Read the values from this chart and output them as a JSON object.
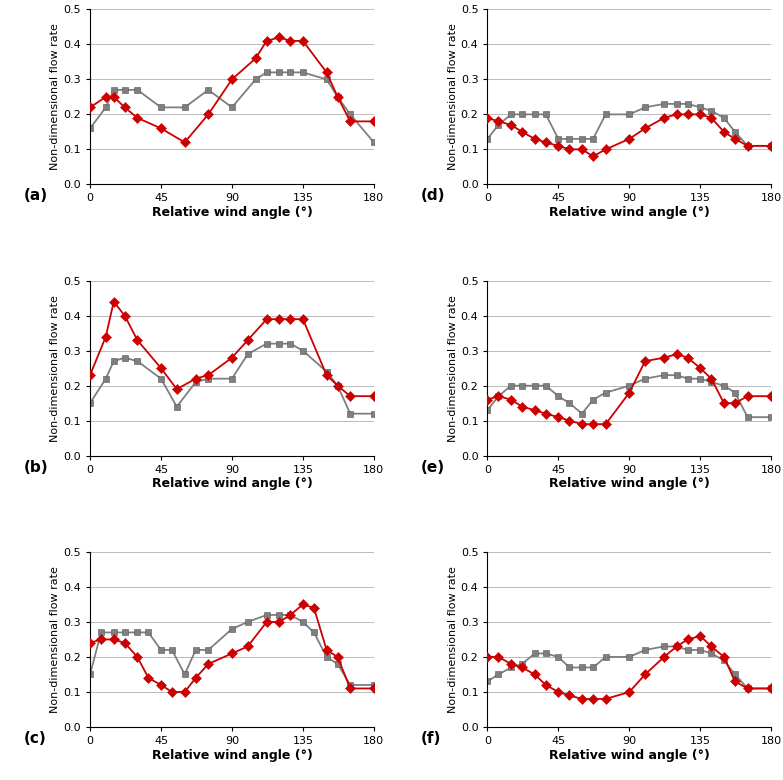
{
  "panels": [
    {
      "label": "(a)",
      "exp_x": [
        0,
        10,
        15,
        22,
        30,
        45,
        60,
        75,
        90,
        105,
        112,
        120,
        127,
        135,
        150,
        157,
        165,
        180
      ],
      "exp_y": [
        0.22,
        0.25,
        0.25,
        0.22,
        0.19,
        0.16,
        0.12,
        0.2,
        0.3,
        0.36,
        0.41,
        0.42,
        0.41,
        0.41,
        0.32,
        0.25,
        0.18,
        0.18
      ],
      "model_x": [
        0,
        10,
        15,
        22,
        30,
        45,
        60,
        75,
        90,
        105,
        112,
        120,
        127,
        135,
        150,
        157,
        165,
        180
      ],
      "model_y": [
        0.16,
        0.22,
        0.27,
        0.27,
        0.27,
        0.22,
        0.22,
        0.27,
        0.22,
        0.3,
        0.32,
        0.32,
        0.32,
        0.32,
        0.3,
        0.25,
        0.2,
        0.12
      ]
    },
    {
      "label": "(b)",
      "exp_x": [
        0,
        10,
        15,
        22,
        30,
        45,
        55,
        67,
        75,
        90,
        100,
        112,
        120,
        127,
        135,
        150,
        157,
        165,
        180
      ],
      "exp_y": [
        0.23,
        0.34,
        0.44,
        0.4,
        0.33,
        0.25,
        0.19,
        0.22,
        0.23,
        0.28,
        0.33,
        0.39,
        0.39,
        0.39,
        0.39,
        0.23,
        0.2,
        0.17,
        0.17
      ],
      "model_x": [
        0,
        10,
        15,
        22,
        30,
        45,
        55,
        67,
        75,
        90,
        100,
        112,
        120,
        127,
        135,
        150,
        157,
        165,
        180
      ],
      "model_y": [
        0.15,
        0.22,
        0.27,
        0.28,
        0.27,
        0.22,
        0.14,
        0.21,
        0.22,
        0.22,
        0.29,
        0.32,
        0.32,
        0.32,
        0.3,
        0.24,
        0.2,
        0.12,
        0.12
      ]
    },
    {
      "label": "(c)",
      "exp_x": [
        0,
        7,
        15,
        22,
        30,
        37,
        45,
        52,
        60,
        67,
        75,
        90,
        100,
        112,
        120,
        127,
        135,
        142,
        150,
        157,
        165,
        180
      ],
      "exp_y": [
        0.24,
        0.25,
        0.25,
        0.24,
        0.2,
        0.14,
        0.12,
        0.1,
        0.1,
        0.14,
        0.18,
        0.21,
        0.23,
        0.3,
        0.3,
        0.32,
        0.35,
        0.34,
        0.22,
        0.2,
        0.11,
        0.11
      ],
      "model_x": [
        0,
        7,
        15,
        22,
        30,
        37,
        45,
        52,
        60,
        67,
        75,
        90,
        100,
        112,
        120,
        127,
        135,
        142,
        150,
        157,
        165,
        180
      ],
      "model_y": [
        0.15,
        0.27,
        0.27,
        0.27,
        0.27,
        0.27,
        0.22,
        0.22,
        0.15,
        0.22,
        0.22,
        0.28,
        0.3,
        0.32,
        0.32,
        0.32,
        0.3,
        0.27,
        0.2,
        0.18,
        0.12,
        0.12
      ]
    },
    {
      "label": "(d)",
      "exp_x": [
        0,
        7,
        15,
        22,
        30,
        37,
        45,
        52,
        60,
        67,
        75,
        90,
        100,
        112,
        120,
        127,
        135,
        142,
        150,
        157,
        165,
        180
      ],
      "exp_y": [
        0.19,
        0.18,
        0.17,
        0.15,
        0.13,
        0.12,
        0.11,
        0.1,
        0.1,
        0.08,
        0.1,
        0.13,
        0.16,
        0.19,
        0.2,
        0.2,
        0.2,
        0.19,
        0.15,
        0.13,
        0.11,
        0.11
      ],
      "model_x": [
        0,
        7,
        15,
        22,
        30,
        37,
        45,
        52,
        60,
        67,
        75,
        90,
        100,
        112,
        120,
        127,
        135,
        142,
        150,
        157,
        165,
        180
      ],
      "model_y": [
        0.13,
        0.17,
        0.2,
        0.2,
        0.2,
        0.2,
        0.13,
        0.13,
        0.13,
        0.13,
        0.2,
        0.2,
        0.22,
        0.23,
        0.23,
        0.23,
        0.22,
        0.21,
        0.19,
        0.15,
        0.11,
        0.11
      ]
    },
    {
      "label": "(e)",
      "exp_x": [
        0,
        7,
        15,
        22,
        30,
        37,
        45,
        52,
        60,
        67,
        75,
        90,
        100,
        112,
        120,
        127,
        135,
        142,
        150,
        157,
        165,
        180
      ],
      "exp_y": [
        0.16,
        0.17,
        0.16,
        0.14,
        0.13,
        0.12,
        0.11,
        0.1,
        0.09,
        0.09,
        0.09,
        0.18,
        0.27,
        0.28,
        0.29,
        0.28,
        0.25,
        0.22,
        0.15,
        0.15,
        0.17,
        0.17
      ],
      "model_x": [
        0,
        7,
        15,
        22,
        30,
        37,
        45,
        52,
        60,
        67,
        75,
        90,
        100,
        112,
        120,
        127,
        135,
        142,
        150,
        157,
        165,
        180
      ],
      "model_y": [
        0.13,
        0.17,
        0.2,
        0.2,
        0.2,
        0.2,
        0.17,
        0.15,
        0.12,
        0.16,
        0.18,
        0.2,
        0.22,
        0.23,
        0.23,
        0.22,
        0.22,
        0.21,
        0.2,
        0.18,
        0.11,
        0.11
      ]
    },
    {
      "label": "(f)",
      "exp_x": [
        0,
        7,
        15,
        22,
        30,
        37,
        45,
        52,
        60,
        67,
        75,
        90,
        100,
        112,
        120,
        127,
        135,
        142,
        150,
        157,
        165,
        180
      ],
      "exp_y": [
        0.2,
        0.2,
        0.18,
        0.17,
        0.15,
        0.12,
        0.1,
        0.09,
        0.08,
        0.08,
        0.08,
        0.1,
        0.15,
        0.2,
        0.23,
        0.25,
        0.26,
        0.23,
        0.2,
        0.13,
        0.11,
        0.11
      ],
      "model_x": [
        0,
        7,
        15,
        22,
        30,
        37,
        45,
        52,
        60,
        67,
        75,
        90,
        100,
        112,
        120,
        127,
        135,
        142,
        150,
        157,
        165,
        180
      ],
      "model_y": [
        0.13,
        0.15,
        0.17,
        0.18,
        0.21,
        0.21,
        0.2,
        0.17,
        0.17,
        0.17,
        0.2,
        0.2,
        0.22,
        0.23,
        0.23,
        0.22,
        0.22,
        0.21,
        0.19,
        0.15,
        0.11,
        0.11
      ]
    }
  ],
  "exp_color": "#cc0000",
  "model_color": "#7f7f7f",
  "exp_marker": "D",
  "model_marker": "s",
  "marker_size": 5,
  "line_width": 1.3,
  "ylabel": "Non-dimensional flow rate",
  "xlabel": "Relative wind angle (°)",
  "ylim": [
    0,
    0.5
  ],
  "yticks": [
    0,
    0.1,
    0.2,
    0.3,
    0.4,
    0.5
  ],
  "xticks": [
    0,
    45,
    90,
    135,
    180
  ],
  "background_color": "#ffffff",
  "grid_color": "#b0b0b0",
  "label_fontsize": 11,
  "ylabel_fontsize": 8,
  "xlabel_fontsize": 9,
  "tick_fontsize": 8
}
